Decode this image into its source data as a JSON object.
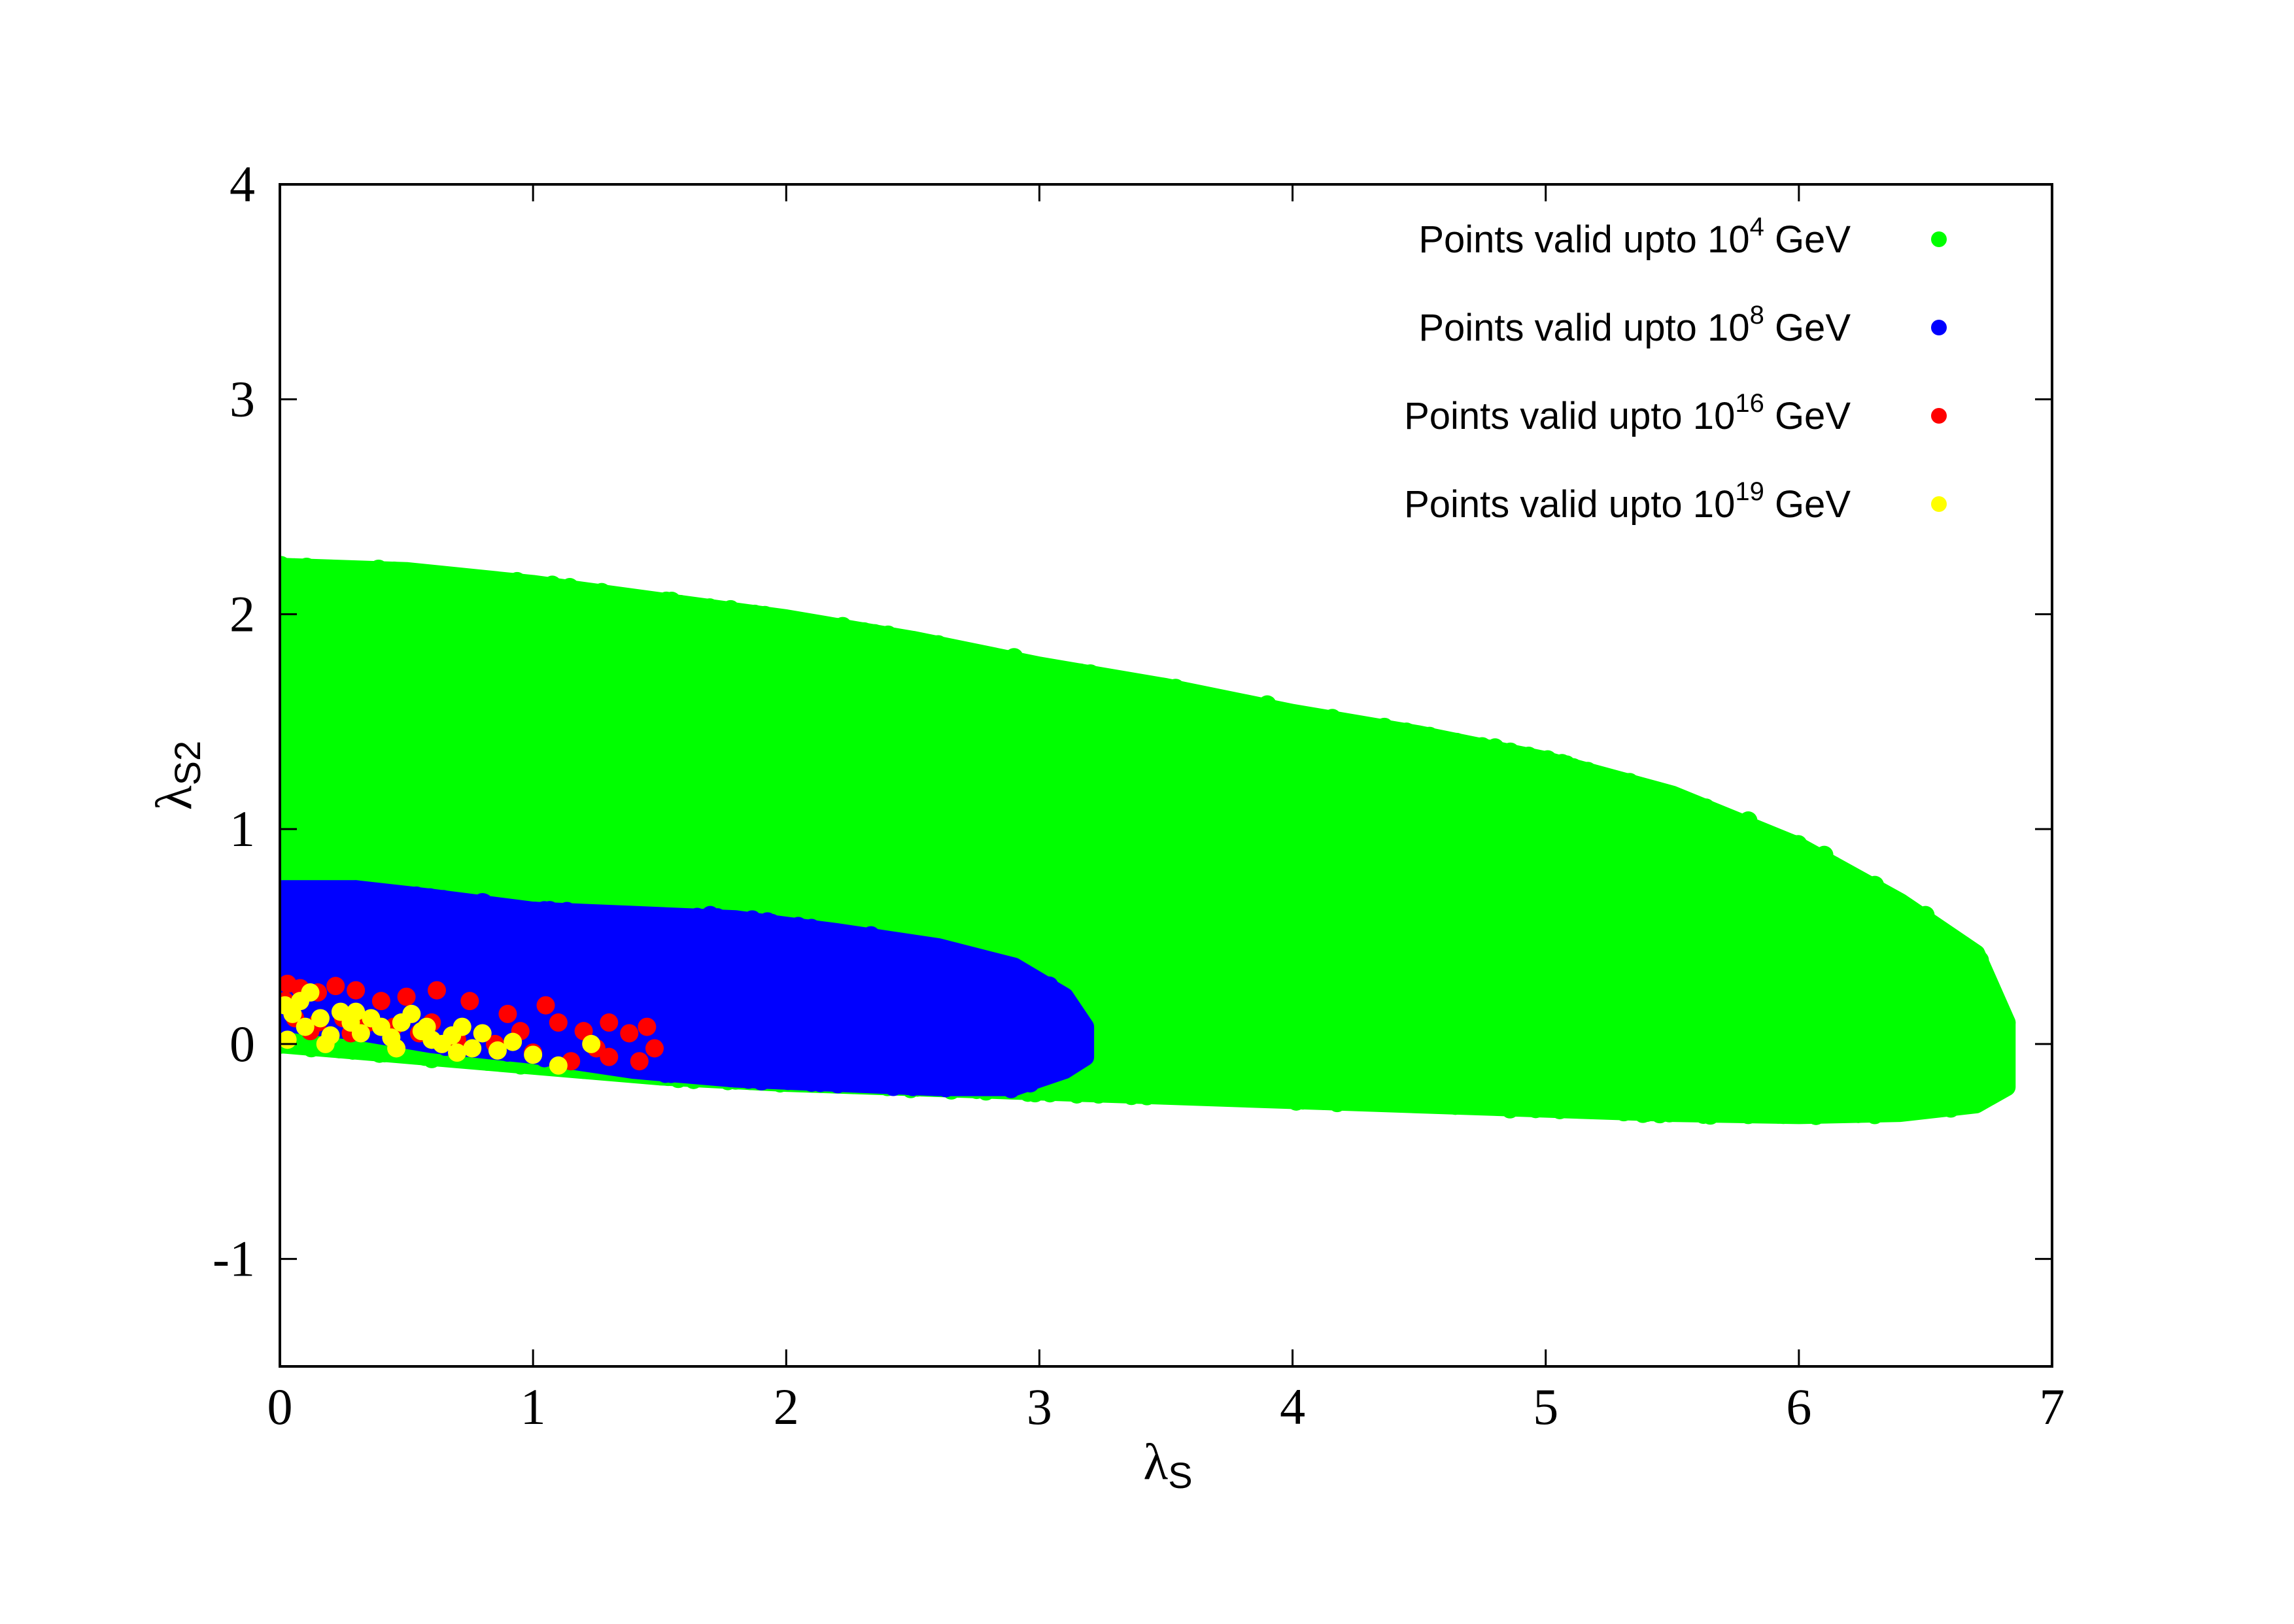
{
  "chart_data": {
    "type": "scatter",
    "title": "",
    "xlabel": "λ",
    "xlabel_sub": "S",
    "ylabel": "λ",
    "ylabel_sub": "S2",
    "xlim": [
      0,
      7
    ],
    "ylim": [
      -1.5,
      4
    ],
    "xticks": [
      0,
      1,
      2,
      3,
      4,
      5,
      6,
      7
    ],
    "xtick_labels": [
      "0",
      "1",
      "2",
      "3",
      "4",
      "5",
      "6",
      "7"
    ],
    "yticks": [
      -1,
      0,
      1,
      2,
      3,
      4
    ],
    "ytick_labels": [
      "-1",
      "0",
      "1",
      "2",
      "3",
      "4"
    ],
    "grid": false,
    "legend_position": "top-right",
    "series": [
      {
        "legend_prefix": "Points valid upto 10",
        "legend_exponent": "4",
        "legend_suffix": " GeV",
        "color": "#00ff00",
        "region": {
          "x": [
            0,
            0.5,
            1,
            1.5,
            2,
            2.5,
            3,
            3.5,
            4,
            4.5,
            5,
            5.5,
            6,
            6.4,
            6.7,
            6.82
          ],
          "y_upper": [
            2.22,
            2.2,
            2.14,
            2.06,
            1.98,
            1.88,
            1.76,
            1.66,
            1.54,
            1.44,
            1.32,
            1.16,
            0.92,
            0.66,
            0.42,
            0.1
          ],
          "y_lower": [
            0.0,
            -0.05,
            -0.1,
            -0.15,
            -0.18,
            -0.2,
            -0.22,
            -0.24,
            -0.26,
            -0.28,
            -0.3,
            -0.32,
            -0.33,
            -0.32,
            -0.28,
            -0.2
          ]
        },
        "sample_points": [
          [
            0.02,
            2.22
          ],
          [
            0.2,
            2.2
          ],
          [
            0.4,
            2.19
          ],
          [
            0.9,
            2.14
          ],
          [
            1.3,
            2.08
          ],
          [
            1.7,
            2.01
          ],
          [
            2.2,
            1.94
          ],
          [
            2.6,
            1.86
          ],
          [
            2.9,
            1.8
          ],
          [
            3.2,
            1.72
          ],
          [
            3.6,
            1.62
          ],
          [
            3.9,
            1.58
          ],
          [
            4.1,
            1.5
          ],
          [
            4.5,
            1.43
          ],
          [
            4.8,
            1.38
          ],
          [
            5.1,
            1.24
          ],
          [
            5.5,
            1.14
          ],
          [
            5.8,
            1.04
          ],
          [
            6.1,
            0.88
          ],
          [
            6.3,
            0.74
          ],
          [
            6.5,
            0.6
          ],
          [
            6.65,
            0.46
          ],
          [
            6.75,
            0.28
          ],
          [
            6.82,
            0.1
          ],
          [
            6.8,
            -0.05
          ],
          [
            6.78,
            -0.2
          ],
          [
            6.6,
            -0.3
          ],
          [
            6.2,
            -0.32
          ],
          [
            5.8,
            -0.33
          ],
          [
            5.4,
            -0.32
          ],
          [
            5.0,
            -0.29
          ],
          [
            4.6,
            -0.28
          ],
          [
            4.2,
            -0.26
          ],
          [
            3.8,
            -0.24
          ],
          [
            3.4,
            -0.23
          ],
          [
            3.0,
            -0.21
          ],
          [
            2.4,
            -0.2
          ],
          [
            1.8,
            -0.17
          ],
          [
            1.2,
            -0.12
          ],
          [
            0.6,
            -0.07
          ],
          [
            0.02,
            0.0
          ]
        ]
      },
      {
        "legend_prefix": "Points valid upto 10",
        "legend_exponent": "8",
        "legend_suffix": " GeV",
        "color": "#0000ff",
        "region": {
          "x": [
            0,
            0.3,
            0.6,
            1.0,
            1.4,
            1.8,
            2.2,
            2.6,
            2.9,
            3.1,
            3.18
          ],
          "y_upper": [
            0.72,
            0.72,
            0.68,
            0.62,
            0.6,
            0.58,
            0.52,
            0.45,
            0.36,
            0.22,
            0.08
          ],
          "y_lower": [
            0.1,
            0.06,
            0.0,
            -0.05,
            -0.12,
            -0.16,
            -0.18,
            -0.2,
            -0.2,
            -0.12,
            -0.06
          ]
        },
        "sample_points": [
          [
            0.02,
            0.7
          ],
          [
            0.3,
            0.72
          ],
          [
            0.8,
            0.66
          ],
          [
            1.3,
            0.6
          ],
          [
            1.7,
            0.6
          ],
          [
            2.1,
            0.54
          ],
          [
            2.5,
            0.45
          ],
          [
            2.8,
            0.37
          ],
          [
            3.0,
            0.26
          ],
          [
            3.18,
            0.07
          ],
          [
            3.15,
            -0.08
          ],
          [
            2.9,
            -0.18
          ],
          [
            2.5,
            -0.2
          ],
          [
            2.1,
            -0.18
          ],
          [
            1.7,
            -0.14
          ],
          [
            1.3,
            -0.1
          ],
          [
            0.9,
            -0.04
          ],
          [
            0.5,
            0.03
          ],
          [
            0.1,
            0.08
          ]
        ]
      },
      {
        "legend_prefix": "Points valid upto 10",
        "legend_exponent": "16",
        "legend_suffix": " GeV",
        "color": "#ff0000",
        "points": [
          [
            0.03,
            0.28
          ],
          [
            0.08,
            0.26
          ],
          [
            0.15,
            0.24
          ],
          [
            0.22,
            0.27
          ],
          [
            0.3,
            0.25
          ],
          [
            0.4,
            0.2
          ],
          [
            0.5,
            0.22
          ],
          [
            0.62,
            0.25
          ],
          [
            0.75,
            0.2
          ],
          [
            0.9,
            0.14
          ],
          [
            1.05,
            0.18
          ],
          [
            1.1,
            0.1
          ],
          [
            1.2,
            0.06
          ],
          [
            1.3,
            0.1
          ],
          [
            1.38,
            0.05
          ],
          [
            1.45,
            0.08
          ],
          [
            1.48,
            -0.02
          ],
          [
            1.42,
            -0.08
          ],
          [
            1.3,
            -0.06
          ],
          [
            1.15,
            -0.08
          ],
          [
            1.0,
            -0.04
          ],
          [
            0.85,
            0.0
          ],
          [
            0.7,
            0.02
          ],
          [
            0.55,
            0.05
          ],
          [
            0.45,
            0.08
          ],
          [
            0.35,
            0.1
          ],
          [
            0.25,
            0.12
          ],
          [
            0.15,
            0.1
          ],
          [
            0.06,
            0.12
          ],
          [
            0.02,
            0.2
          ],
          [
            0.28,
            0.05
          ],
          [
            0.6,
            0.1
          ],
          [
            0.95,
            0.06
          ],
          [
            1.25,
            -0.02
          ],
          [
            0.12,
            0.06
          ]
        ]
      },
      {
        "legend_prefix": "Points valid upto 10",
        "legend_exponent": "19",
        "legend_suffix": " GeV",
        "color": "#ffff00",
        "points": [
          [
            0.02,
            0.18
          ],
          [
            0.05,
            0.14
          ],
          [
            0.08,
            0.2
          ],
          [
            0.12,
            0.24
          ],
          [
            0.16,
            0.12
          ],
          [
            0.2,
            0.04
          ],
          [
            0.24,
            0.15
          ],
          [
            0.28,
            0.1
          ],
          [
            0.32,
            0.05
          ],
          [
            0.36,
            0.12
          ],
          [
            0.4,
            0.08
          ],
          [
            0.44,
            0.03
          ],
          [
            0.48,
            0.1
          ],
          [
            0.52,
            0.14
          ],
          [
            0.56,
            0.06
          ],
          [
            0.6,
            0.02
          ],
          [
            0.64,
            0.0
          ],
          [
            0.68,
            0.04
          ],
          [
            0.72,
            0.08
          ],
          [
            0.76,
            -0.02
          ],
          [
            0.8,
            0.05
          ],
          [
            0.86,
            -0.03
          ],
          [
            0.92,
            0.01
          ],
          [
            1.0,
            -0.05
          ],
          [
            1.1,
            -0.1
          ],
          [
            1.23,
            0.0
          ],
          [
            0.03,
            0.02
          ],
          [
            0.1,
            0.08
          ],
          [
            0.18,
            0.0
          ],
          [
            0.3,
            0.15
          ],
          [
            0.46,
            -0.02
          ],
          [
            0.58,
            0.08
          ],
          [
            0.7,
            -0.04
          ]
        ]
      }
    ]
  }
}
